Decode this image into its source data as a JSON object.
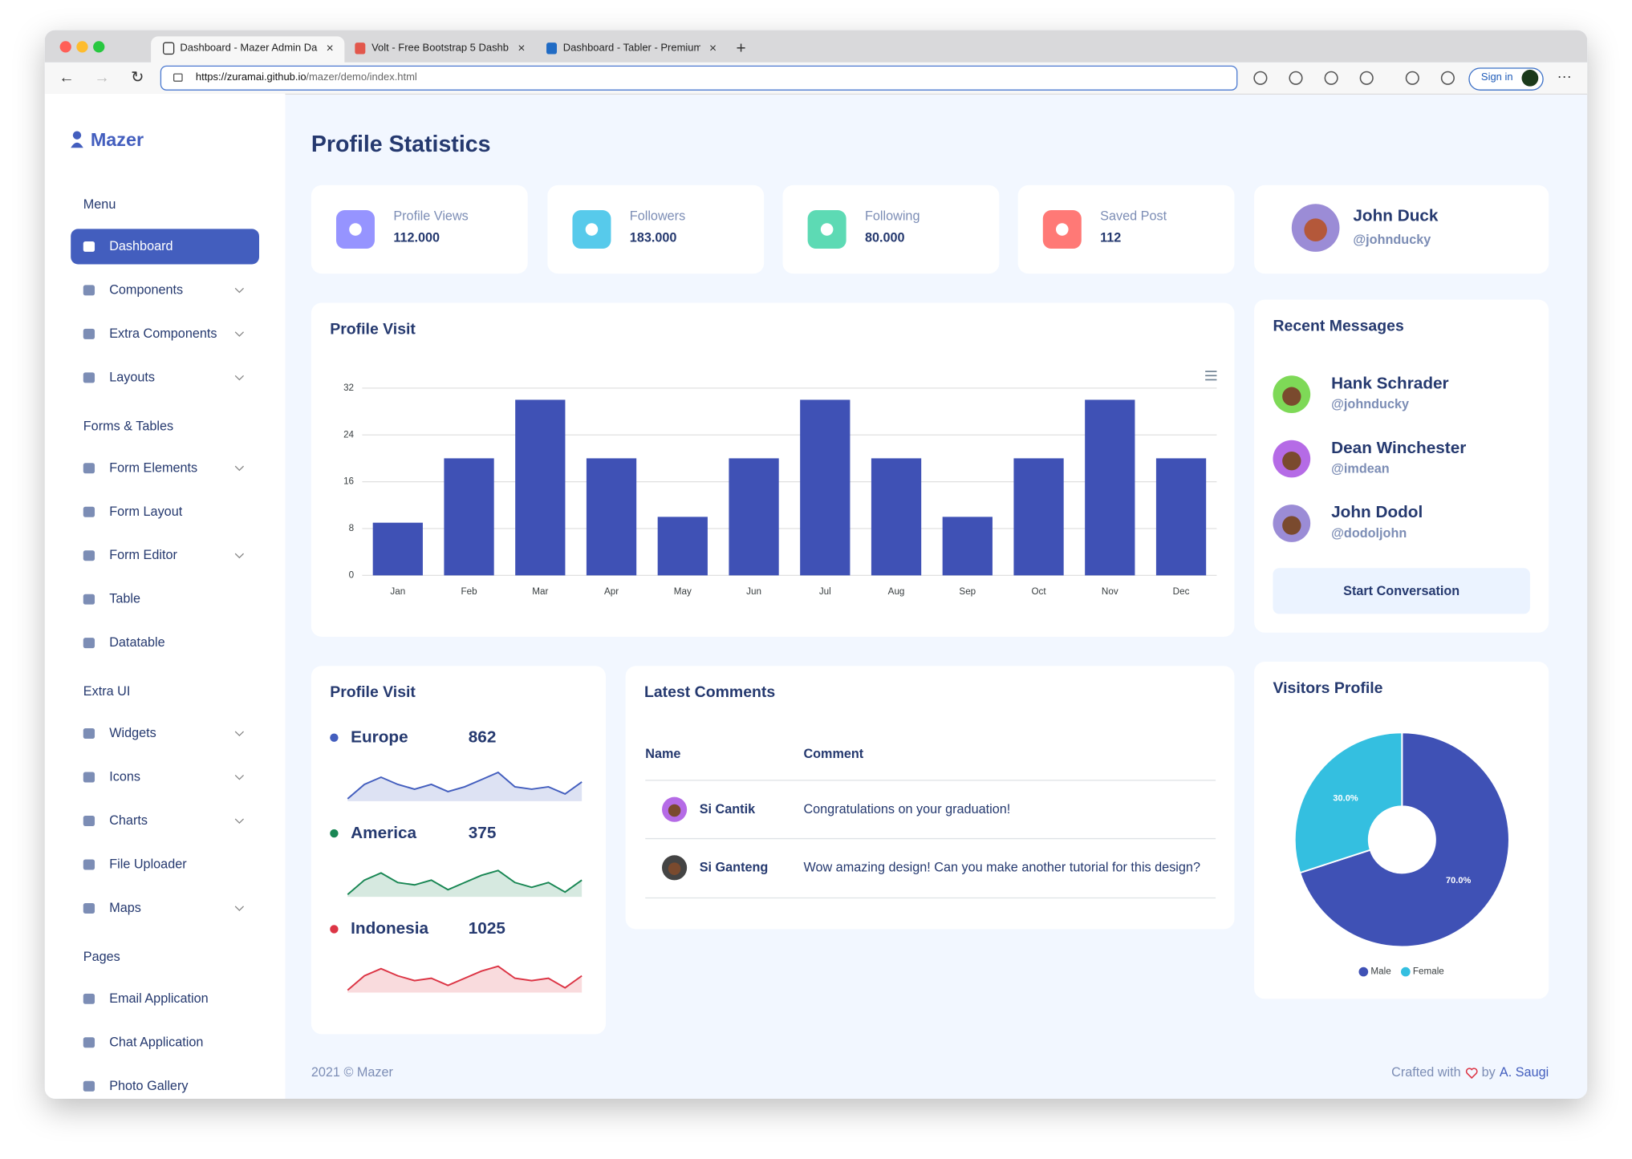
{
  "browser": {
    "tabs": [
      "Dashboard - Mazer Admin Das",
      "Volt - Free Bootstrap 5 Dashb",
      "Dashboard - Tabler - Premium"
    ],
    "url": {
      "host": "https://zuramai.github.io",
      "path": "/mazer/demo/index.html"
    },
    "sign_in": "Sign in"
  },
  "sidebar": {
    "brand": "Mazer",
    "sections": [
      {
        "title": "Menu",
        "items": [
          {
            "label": "Dashboard",
            "active": true
          },
          {
            "label": "Components",
            "submenu": true
          },
          {
            "label": "Extra Components",
            "submenu": true
          },
          {
            "label": "Layouts",
            "submenu": true
          }
        ]
      },
      {
        "title": "Forms & Tables",
        "items": [
          {
            "label": "Form Elements",
            "submenu": true
          },
          {
            "label": "Form Layout"
          },
          {
            "label": "Form Editor",
            "submenu": true
          },
          {
            "label": "Table"
          },
          {
            "label": "Datatable"
          }
        ]
      },
      {
        "title": "Extra UI",
        "items": [
          {
            "label": "Widgets",
            "submenu": true
          },
          {
            "label": "Icons",
            "submenu": true
          },
          {
            "label": "Charts",
            "submenu": true
          },
          {
            "label": "File Uploader"
          },
          {
            "label": "Maps",
            "submenu": true
          }
        ]
      },
      {
        "title": "Pages",
        "items": [
          {
            "label": "Email Application"
          },
          {
            "label": "Chat Application"
          },
          {
            "label": "Photo Gallery"
          }
        ]
      }
    ]
  },
  "page_title": "Profile Statistics",
  "stats": [
    {
      "label": "Profile Views",
      "value": "112.000",
      "color": "#9694ff"
    },
    {
      "label": "Followers",
      "value": "183.000",
      "color": "#57caeb"
    },
    {
      "label": "Following",
      "value": "80.000",
      "color": "#5ddab4"
    },
    {
      "label": "Saved Post",
      "value": "112",
      "color": "#ff7976"
    }
  ],
  "profile": {
    "name": "John Duck",
    "handle": "@johnducky"
  },
  "chart_data": [
    {
      "type": "bar",
      "title": "Profile Visit",
      "categories": [
        "Jan",
        "Feb",
        "Mar",
        "Apr",
        "May",
        "Jun",
        "Jul",
        "Aug",
        "Sep",
        "Oct",
        "Nov",
        "Dec"
      ],
      "values": [
        9,
        20,
        30,
        20,
        10,
        20,
        30,
        20,
        10,
        20,
        30,
        20
      ],
      "color": "#3f51b5",
      "ylim": [
        0,
        32
      ],
      "yticks": [
        0,
        8,
        16,
        24,
        32
      ],
      "grid": true
    },
    {
      "type": "pie",
      "title": "Visitors Profile",
      "categories": [
        "Male",
        "Female"
      ],
      "values": [
        70,
        30
      ],
      "value_labels": [
        "70.0%",
        "30.0%"
      ],
      "colors": [
        "#3f51b5",
        "#34bfe0"
      ],
      "legend": "bottom"
    }
  ],
  "recent_messages": {
    "title": "Recent Messages",
    "items": [
      {
        "name": "Hank Schrader",
        "handle": "@johnducky"
      },
      {
        "name": "Dean Winchester",
        "handle": "@imdean"
      },
      {
        "name": "John Dodol",
        "handle": "@dodoljohn"
      }
    ],
    "button": "Start Conversation"
  },
  "region_visits": {
    "title": "Profile Visit",
    "regions": [
      {
        "name": "Europe",
        "value": 862,
        "color": "#435ebe",
        "trend": [
          1,
          7,
          10,
          7,
          5,
          7,
          4,
          6,
          9,
          12,
          6,
          5,
          6,
          3,
          8
        ]
      },
      {
        "name": "America",
        "value": 375,
        "color": "#198754",
        "trend": [
          1,
          7,
          10,
          6,
          5,
          7,
          3,
          6,
          9,
          11,
          6,
          4,
          6,
          2,
          7
        ]
      },
      {
        "name": "Indonesia",
        "value": 1025,
        "color": "#dc3545",
        "trend": [
          1,
          7,
          10,
          7,
          5,
          6,
          3,
          6,
          9,
          11,
          6,
          5,
          6,
          2,
          7
        ]
      }
    ]
  },
  "comments": {
    "title": "Latest Comments",
    "columns": [
      "Name",
      "Comment"
    ],
    "rows": [
      [
        "Si Cantik",
        "Congratulations on your graduation!"
      ],
      [
        "Si Ganteng",
        "Wow amazing design! Can you make another tutorial for this design?"
      ]
    ]
  },
  "footer": {
    "left": "2021 © Mazer",
    "crafted": "Crafted with",
    "by": "by",
    "author": "A. Saugi"
  }
}
